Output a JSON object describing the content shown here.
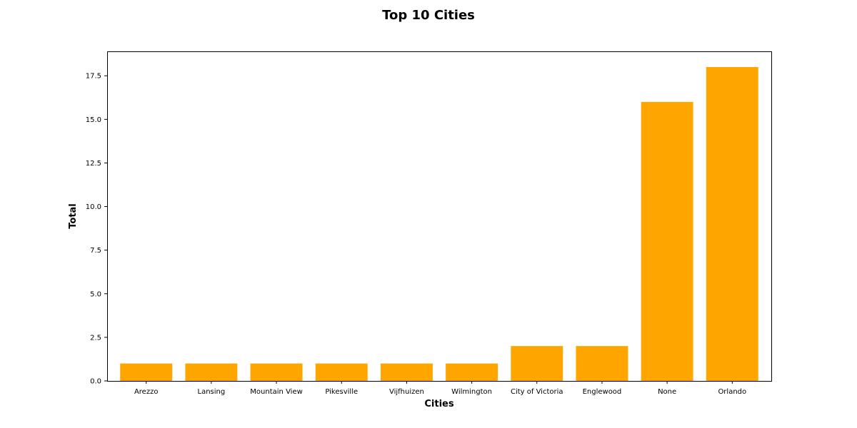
{
  "chart_data": {
    "type": "bar",
    "title": "Top 10 Cities",
    "xlabel": "Cities",
    "ylabel": "Total",
    "categories": [
      "Arezzo",
      "Lansing",
      "Mountain View",
      "Pikesville",
      "Vijfhuizen",
      "Wilmington",
      "City of Victoria",
      "Englewood",
      "None",
      "Orlando"
    ],
    "values": [
      1,
      1,
      1,
      1,
      1,
      1,
      2,
      2,
      16,
      18
    ],
    "ylim": [
      0,
      18.9
    ],
    "yticks": [
      0.0,
      2.5,
      5.0,
      7.5,
      10.0,
      12.5,
      15.0,
      17.5
    ],
    "ytick_labels": [
      "0.0",
      "2.5",
      "5.0",
      "7.5",
      "10.0",
      "12.5",
      "15.0",
      "17.5"
    ],
    "bar_color": "#ffa500",
    "grid": false,
    "legend": "none"
  }
}
